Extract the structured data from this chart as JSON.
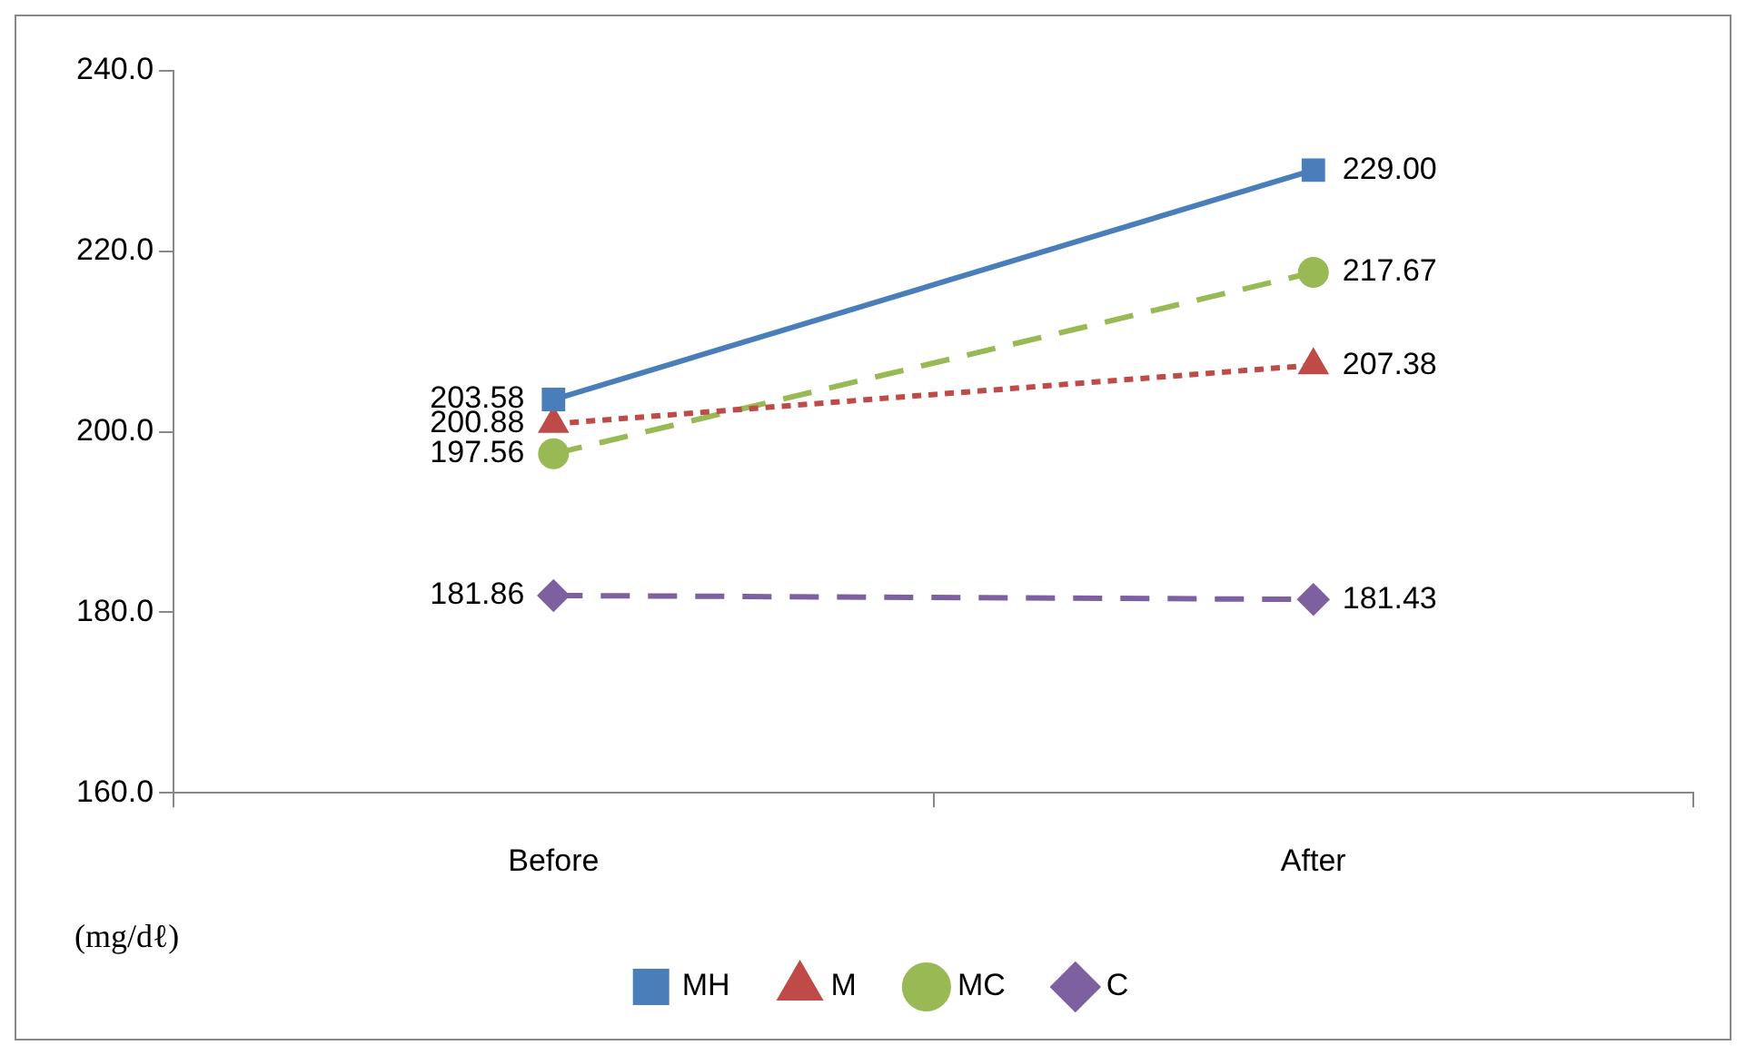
{
  "chart_data": {
    "type": "line",
    "categories": [
      "Before",
      "After"
    ],
    "ylabel": "(mg/dℓ)",
    "series": [
      {
        "name": "MH",
        "color": "#4a7ebb",
        "marker": "square",
        "line_style": "solid",
        "values": [
          203.58,
          229.0
        ],
        "value_labels": [
          "203.58",
          "229.00"
        ]
      },
      {
        "name": "M",
        "color": "#be4b48",
        "marker": "triangle",
        "line_style": "dotted",
        "values": [
          200.88,
          207.38
        ],
        "value_labels": [
          "200.88",
          "207.38"
        ]
      },
      {
        "name": "MC",
        "color": "#98b954",
        "marker": "circle",
        "line_style": "dashed",
        "values": [
          197.56,
          217.67
        ],
        "value_labels": [
          "197.56",
          "217.67"
        ]
      },
      {
        "name": "C",
        "color": "#7d60a0",
        "marker": "diamond",
        "line_style": "dashed",
        "values": [
          181.86,
          181.43
        ],
        "value_labels": [
          "181.86",
          "181.43"
        ]
      }
    ],
    "ylim": [
      160,
      240
    ],
    "yticks": [
      {
        "value": 160,
        "label": "160.0"
      },
      {
        "value": 180,
        "label": "180.0"
      },
      {
        "value": 200,
        "label": "200.0"
      },
      {
        "value": 220,
        "label": "220.0"
      },
      {
        "value": 240,
        "label": "240.0"
      }
    ],
    "grid": false,
    "legend": "bottom"
  }
}
